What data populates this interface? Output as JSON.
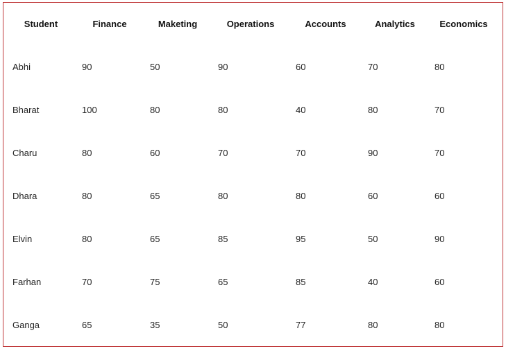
{
  "chart_data": {
    "type": "table",
    "columns": [
      "Student",
      "Finance",
      "Maketing",
      "Operations",
      "Accounts",
      "Analytics",
      "Economics"
    ],
    "rows": [
      [
        "Abhi",
        "90",
        "50",
        "90",
        "60",
        "70",
        "80"
      ],
      [
        "Bharat",
        "100",
        "80",
        "80",
        "40",
        "80",
        "70"
      ],
      [
        "Charu",
        "80",
        "60",
        "70",
        "70",
        "90",
        "70"
      ],
      [
        "Dhara",
        "80",
        "65",
        "80",
        "80",
        "60",
        "60"
      ],
      [
        "Elvin",
        "80",
        "65",
        "85",
        "95",
        "50",
        "90"
      ],
      [
        "Farhan",
        "70",
        "75",
        "65",
        "85",
        "40",
        "60"
      ],
      [
        "Ganga",
        "65",
        "35",
        "50",
        "77",
        "80",
        "80"
      ]
    ]
  },
  "colors": {
    "frame_border": "#c0393b",
    "text": "#222222"
  }
}
